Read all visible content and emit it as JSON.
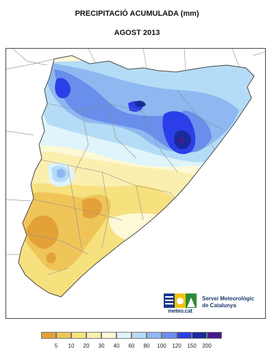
{
  "header": {
    "title": "PRECIPITACIÓ ACUMULADA (mm)",
    "subtitle": "AGOST 2013"
  },
  "map": {
    "region": "Catalunya",
    "color_scale": [
      {
        "max": 5,
        "color": "#e3a238"
      },
      {
        "max": 10,
        "color": "#efc55a"
      },
      {
        "max": 20,
        "color": "#f7e17f"
      },
      {
        "max": 30,
        "color": "#fbefaf"
      },
      {
        "max": 40,
        "color": "#fdf8d6"
      },
      {
        "max": 60,
        "color": "#dff4fb"
      },
      {
        "max": 80,
        "color": "#b5dcf6"
      },
      {
        "max": 100,
        "color": "#8fb8f1"
      },
      {
        "max": 120,
        "color": "#6a8eeb"
      },
      {
        "max": 150,
        "color": "#2b3ee8"
      },
      {
        "max": 200,
        "color": "#1b2a9a"
      },
      {
        "max": 9999,
        "color": "#4a1a8a"
      }
    ]
  },
  "logo": {
    "wordmark": "meteo.cat",
    "org_line1": "Servei Meteorològic",
    "org_line2": "de Catalunya"
  },
  "legend": {
    "ticks": [
      "5",
      "10",
      "20",
      "30",
      "40",
      "60",
      "80",
      "100",
      "120",
      "150",
      "200"
    ]
  }
}
